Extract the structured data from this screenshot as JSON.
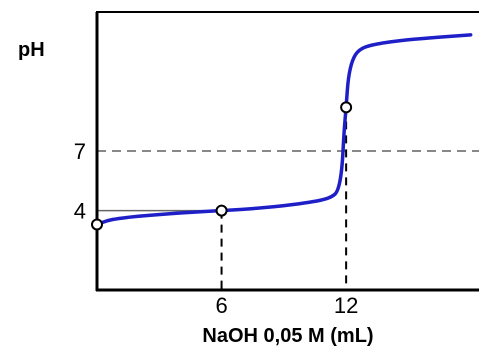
{
  "chart_data": {
    "type": "line",
    "ylabel": "pH",
    "xlabel": "NaOH 0,05 M (mL)",
    "x_ticks": [
      {
        "value": 6,
        "label": "6"
      },
      {
        "value": 12,
        "label": "12"
      }
    ],
    "y_ticks": [
      {
        "value": 4,
        "label": "4"
      },
      {
        "value": 7,
        "label": "7"
      }
    ],
    "xlim": [
      0,
      18.4
    ],
    "ylim": [
      0,
      14
    ],
    "reference_line_y": 7,
    "guide_y": 4,
    "guide_x": [
      6,
      12
    ],
    "series": [
      {
        "color": "#1f1fc8",
        "points": [
          [
            0,
            3.3
          ],
          [
            0.5,
            3.5
          ],
          [
            1,
            3.6
          ],
          [
            2,
            3.72
          ],
          [
            3,
            3.8
          ],
          [
            4,
            3.88
          ],
          [
            5,
            3.94
          ],
          [
            6,
            4.0
          ],
          [
            7,
            4.06
          ],
          [
            8,
            4.14
          ],
          [
            9,
            4.24
          ],
          [
            10,
            4.38
          ],
          [
            10.8,
            4.52
          ],
          [
            11.3,
            4.68
          ],
          [
            11.6,
            4.95
          ],
          [
            11.8,
            6.0
          ],
          [
            11.9,
            8.0
          ],
          [
            12.0,
            9.2
          ],
          [
            12.1,
            10.7
          ],
          [
            12.3,
            11.6
          ],
          [
            12.6,
            12.1
          ],
          [
            13.2,
            12.35
          ],
          [
            14.5,
            12.55
          ],
          [
            16,
            12.7
          ],
          [
            18,
            12.85
          ]
        ]
      }
    ],
    "marked_points": [
      {
        "x": 0,
        "y": 3.3
      },
      {
        "x": 6,
        "y": 4.0
      },
      {
        "x": 12,
        "y": 9.2
      }
    ]
  }
}
